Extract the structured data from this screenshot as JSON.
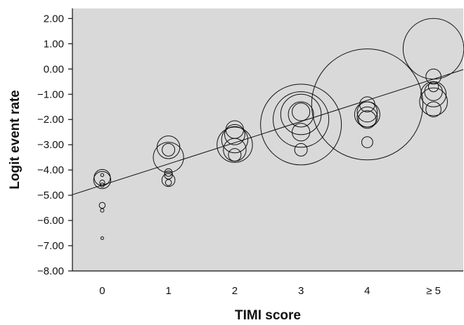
{
  "chart_data": {
    "type": "scatter",
    "title": "",
    "xlabel": "TIMI score",
    "ylabel": "Logit event rate",
    "x_ticks": [
      "0",
      "1",
      "2",
      "3",
      "4",
      "≥ 5"
    ],
    "y_ticks": [
      "2.00",
      "1.00",
      "0.00",
      "−1.00",
      "−2.00",
      "−3.00",
      "−4.00",
      "−5.00",
      "−6.00",
      "−7.00",
      "−8.00"
    ],
    "ylim": [
      -8,
      2.4
    ],
    "xlim": [
      -0.45,
      5.45
    ],
    "grid": false,
    "background": "#d9d9d9",
    "marker": "open-circle",
    "regression_line": {
      "intercept": -4.6,
      "slope": 0.84
    },
    "points": [
      {
        "x": 0,
        "y": -4.3,
        "size": 0.32
      },
      {
        "x": 0,
        "y": -4.4,
        "size": 0.34
      },
      {
        "x": 0,
        "y": -4.2,
        "size": 0.06
      },
      {
        "x": 0,
        "y": -4.5,
        "size": 0.1
      },
      {
        "x": 0,
        "y": -4.6,
        "size": 0.08
      },
      {
        "x": 0,
        "y": -5.4,
        "size": 0.12
      },
      {
        "x": 0,
        "y": -5.6,
        "size": 0.07
      },
      {
        "x": 0,
        "y": -6.7,
        "size": 0.05
      },
      {
        "x": 1,
        "y": -3.1,
        "size": 0.45
      },
      {
        "x": 1,
        "y": -3.5,
        "size": 0.6
      },
      {
        "x": 1,
        "y": -3.2,
        "size": 0.25
      },
      {
        "x": 1,
        "y": -4.1,
        "size": 0.15
      },
      {
        "x": 1,
        "y": -4.2,
        "size": 0.16
      },
      {
        "x": 1,
        "y": -4.4,
        "size": 0.26
      },
      {
        "x": 1,
        "y": -4.5,
        "size": 0.12
      },
      {
        "x": 2,
        "y": -2.4,
        "size": 0.35
      },
      {
        "x": 2,
        "y": -2.6,
        "size": 0.4
      },
      {
        "x": 2,
        "y": -2.8,
        "size": 0.52
      },
      {
        "x": 2,
        "y": -3.0,
        "size": 0.7
      },
      {
        "x": 2,
        "y": -3.2,
        "size": 0.45
      },
      {
        "x": 2,
        "y": -3.4,
        "size": 0.25
      },
      {
        "x": 3,
        "y": -1.7,
        "size": 0.35
      },
      {
        "x": 3,
        "y": -1.8,
        "size": 0.5
      },
      {
        "x": 3,
        "y": -1.8,
        "size": 0.8
      },
      {
        "x": 3,
        "y": -2.0,
        "size": 1.1
      },
      {
        "x": 3,
        "y": -2.2,
        "size": 1.6
      },
      {
        "x": 3,
        "y": -2.5,
        "size": 0.35
      },
      {
        "x": 3,
        "y": -3.2,
        "size": 0.25
      },
      {
        "x": 4,
        "y": -1.4,
        "size": 0.3
      },
      {
        "x": 4,
        "y": -1.4,
        "size": 2.2
      },
      {
        "x": 4,
        "y": -1.7,
        "size": 0.4
      },
      {
        "x": 4,
        "y": -1.8,
        "size": 0.5
      },
      {
        "x": 4,
        "y": -1.9,
        "size": 0.4
      },
      {
        "x": 4,
        "y": -2.0,
        "size": 0.35
      },
      {
        "x": 4,
        "y": -2.9,
        "size": 0.22
      },
      {
        "x": 5,
        "y": 0.8,
        "size": 1.2
      },
      {
        "x": 5,
        "y": -0.3,
        "size": 0.3
      },
      {
        "x": 5,
        "y": -0.7,
        "size": 0.2
      },
      {
        "x": 5,
        "y": -0.9,
        "size": 0.35
      },
      {
        "x": 5,
        "y": -1.0,
        "size": 0.5
      },
      {
        "x": 5,
        "y": -1.3,
        "size": 0.55
      },
      {
        "x": 5,
        "y": -1.6,
        "size": 0.3
      }
    ]
  }
}
